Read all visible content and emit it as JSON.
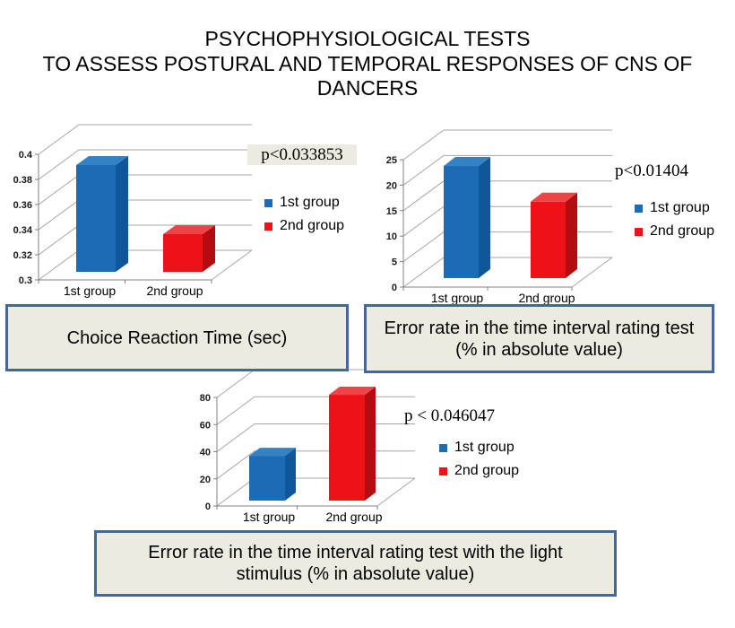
{
  "slide": {
    "title_lines": [
      "PSYCHOPHYSIOLOGICAL TESTS",
      "TO ASSESS POSTURAL AND TEMPORAL RESPONSES OF CNS OF",
      "DANCERS"
    ]
  },
  "colors": {
    "bar_blue": "#1b6cb4",
    "bar_blue_top": "#3283c6",
    "bar_blue_side": "#10569a",
    "bar_red": "#ee1216",
    "bar_red_top": "#ef4348",
    "bar_red_side": "#b40d11",
    "grid": "#a6a6a6",
    "axis": "#808080",
    "tick_label": "#1a1a1a",
    "caption_border": "#41689c",
    "caption_bg": "#edeae0",
    "p_box_bg": "#ecebe1"
  },
  "chart_data": [
    {
      "id": "choice-reaction-time",
      "type": "bar",
      "categories": [
        "1st group",
        "2nd group"
      ],
      "values": [
        0.385,
        0.33
      ],
      "bar_colors": [
        "blue",
        "red"
      ],
      "ylim": [
        0.3,
        0.4
      ],
      "ytick_values": [
        0.3,
        0.32,
        0.34,
        0.36,
        0.38,
        0.4
      ],
      "ytick_labels": [
        "0.3",
        "0.32",
        "0.34",
        "0.36",
        "0.38",
        "0.4"
      ],
      "p_label": "p<0.033853",
      "legend": [
        {
          "label": "1st group",
          "color": "blue"
        },
        {
          "label": "2nd group",
          "color": "red"
        }
      ],
      "legend_position": "right",
      "grid": true,
      "caption": "Choice Reaction Time (sec)"
    },
    {
      "id": "error-rate-time-interval",
      "type": "bar",
      "categories": [
        "1st group",
        "2nd group"
      ],
      "values": [
        22,
        15
      ],
      "bar_colors": [
        "blue",
        "red"
      ],
      "ylim": [
        0,
        25
      ],
      "ytick_values": [
        0,
        5,
        10,
        15,
        20,
        25
      ],
      "ytick_labels": [
        "0",
        "5",
        "10",
        "15",
        "20",
        "25"
      ],
      "p_label": "p<0.01404",
      "legend": [
        {
          "label": "1st group",
          "color": "blue"
        },
        {
          "label": "2nd group",
          "color": "red"
        }
      ],
      "legend_position": "right",
      "grid": true,
      "caption": "Error rate in the time interval rating test (% in absolute value)"
    },
    {
      "id": "error-rate-light-stimulus",
      "type": "bar",
      "categories": [
        "1st group",
        "2nd group"
      ],
      "values": [
        33,
        78
      ],
      "bar_colors": [
        "blue",
        "red"
      ],
      "ylim": [
        0,
        80
      ],
      "ytick_values": [
        0,
        20,
        40,
        60,
        80
      ],
      "ytick_labels": [
        "0",
        "20",
        "40",
        "60",
        "80"
      ],
      "p_label": "p < 0.046047",
      "legend": [
        {
          "label": "1st group",
          "color": "blue"
        },
        {
          "label": "2nd group",
          "color": "red"
        }
      ],
      "legend_position": "right",
      "grid": true,
      "caption": "Error rate in the time interval rating test with the light stimulus (% in absolute value)"
    }
  ]
}
